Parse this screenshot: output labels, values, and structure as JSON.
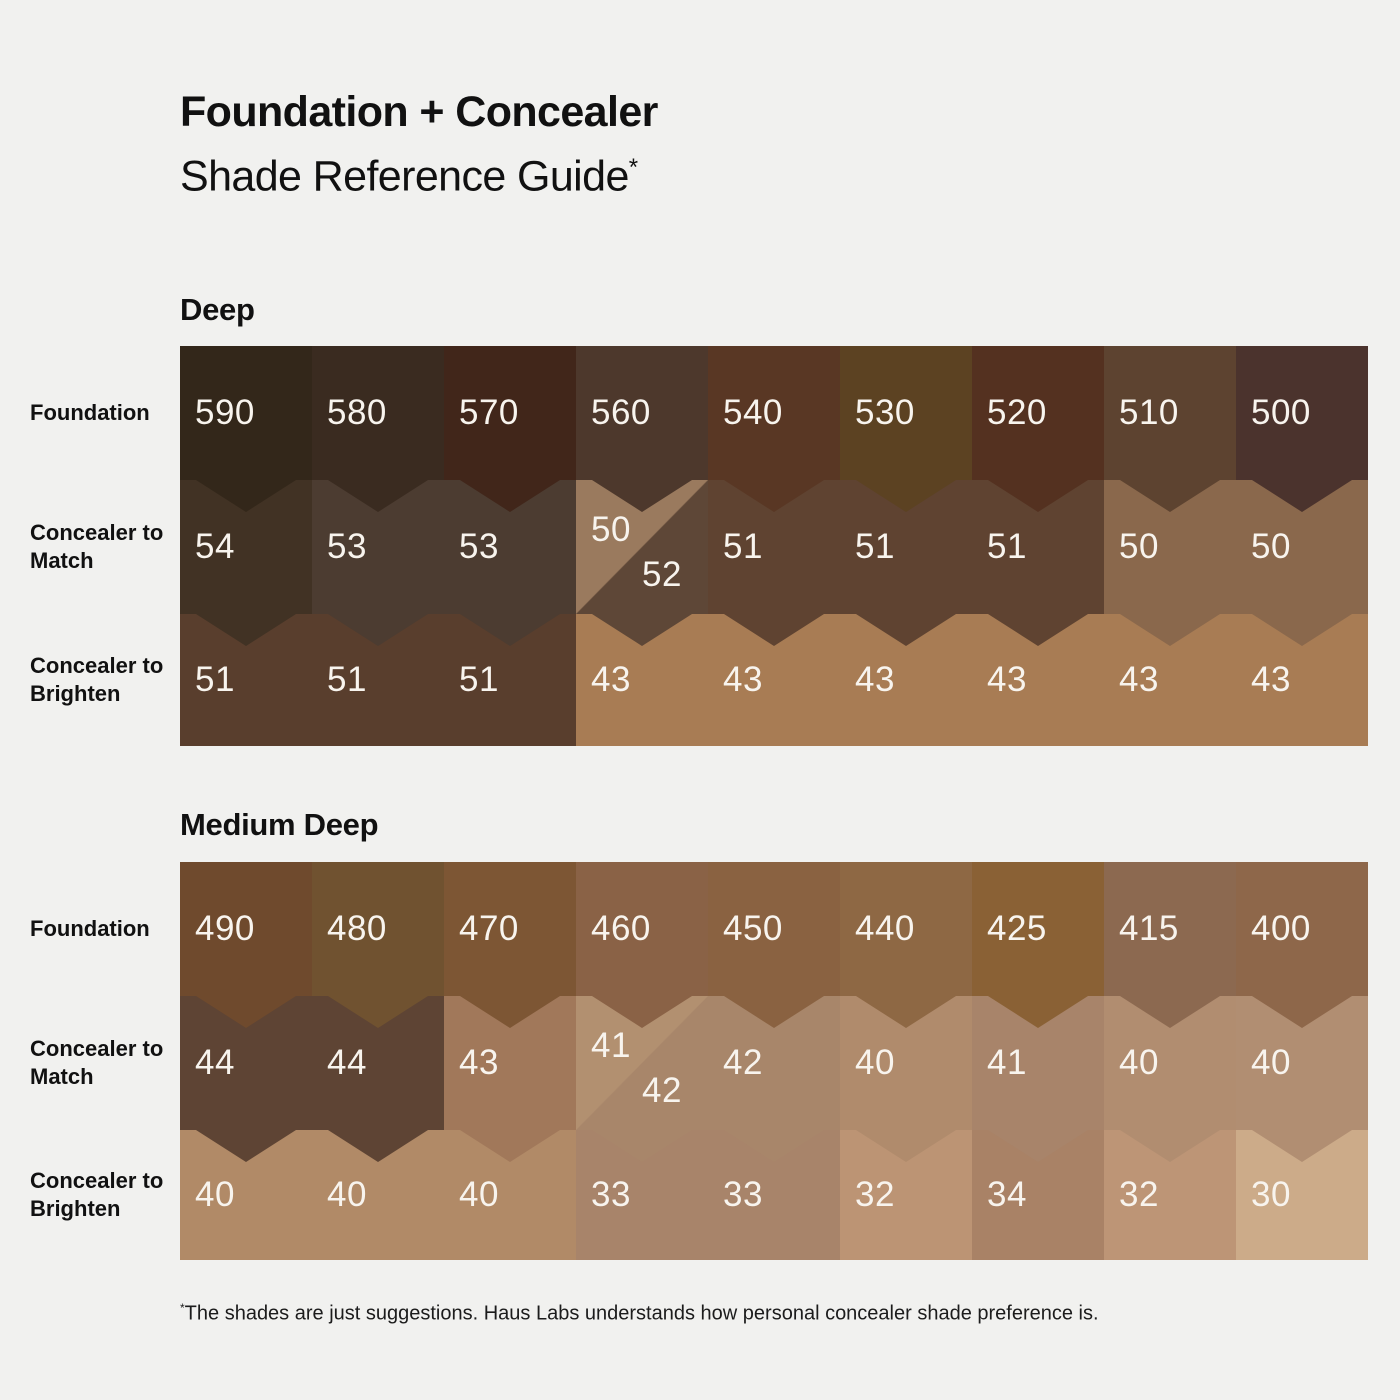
{
  "title": {
    "line1": "Foundation + Concealer",
    "line2": "Shade Reference Guide",
    "marker": "*"
  },
  "row_labels": [
    "Foundation",
    "Concealer to Match",
    "Concealer to Brighten"
  ],
  "footnote": {
    "marker": "*",
    "text": "The shades are just suggestions. Haus Labs understands how personal concealer shade preference is."
  },
  "colors": {
    "background": "#f1f1ef",
    "heading_text": "#111111",
    "swatch_number_text": "#f8f4ee"
  },
  "sections": [
    {
      "heading": "Deep",
      "rows": [
        {
          "key": "foundation",
          "label": "Foundation",
          "cells": [
            {
              "label": "590",
              "color": "#33271a"
            },
            {
              "label": "580",
              "color": "#3a2b20"
            },
            {
              "label": "570",
              "color": "#41261a"
            },
            {
              "label": "560",
              "color": "#4d382c"
            },
            {
              "label": "540",
              "color": "#593724"
            },
            {
              "label": "530",
              "color": "#5c4222"
            },
            {
              "label": "520",
              "color": "#543120"
            },
            {
              "label": "510",
              "color": "#5d4330"
            },
            {
              "label": "500",
              "color": "#4b332d"
            }
          ]
        },
        {
          "key": "concealer-to-match",
          "label": "Concealer to Match",
          "cells": [
            {
              "label": "54",
              "color": "#413224"
            },
            {
              "label": "53",
              "color": "#4c3c31"
            },
            {
              "label": "53",
              "color": "#4c3c31"
            },
            {
              "labels": [
                "50",
                "52"
              ],
              "colors": [
                "#9a7a5e",
                "#5e4737"
              ]
            },
            {
              "label": "51",
              "color": "#5f4331"
            },
            {
              "label": "51",
              "color": "#5f4331"
            },
            {
              "label": "51",
              "color": "#5f4331"
            },
            {
              "label": "50",
              "color": "#8a684c"
            },
            {
              "label": "50",
              "color": "#8a684c"
            }
          ]
        },
        {
          "key": "concealer-to-brighten",
          "label": "Concealer to Brighten",
          "cells": [
            {
              "label": "51",
              "color": "#593e2d"
            },
            {
              "label": "51",
              "color": "#593e2d"
            },
            {
              "label": "51",
              "color": "#593e2d"
            },
            {
              "label": "43",
              "color": "#a87c54"
            },
            {
              "label": "43",
              "color": "#a87c54"
            },
            {
              "label": "43",
              "color": "#a87c54"
            },
            {
              "label": "43",
              "color": "#a87c54"
            },
            {
              "label": "43",
              "color": "#a87c54"
            },
            {
              "label": "43",
              "color": "#a87c54"
            }
          ]
        }
      ]
    },
    {
      "heading": "Medium Deep",
      "rows": [
        {
          "key": "foundation",
          "label": "Foundation",
          "cells": [
            {
              "label": "490",
              "color": "#6f4a2d"
            },
            {
              "label": "480",
              "color": "#705230"
            },
            {
              "label": "470",
              "color": "#7d5634"
            },
            {
              "label": "460",
              "color": "#8a6246"
            },
            {
              "label": "450",
              "color": "#8a6241"
            },
            {
              "label": "440",
              "color": "#8e6844"
            },
            {
              "label": "425",
              "color": "#8a6135"
            },
            {
              "label": "415",
              "color": "#8c6950"
            },
            {
              "label": "400",
              "color": "#8e674a"
            }
          ]
        },
        {
          "key": "concealer-to-match",
          "label": "Concealer to Match",
          "cells": [
            {
              "label": "44",
              "color": "#5e4434"
            },
            {
              "label": "44",
              "color": "#5e4434"
            },
            {
              "label": "43",
              "color": "#a1785a"
            },
            {
              "labels": [
                "41",
                "42"
              ],
              "colors": [
                "#b29070",
                "#a8866a"
              ]
            },
            {
              "label": "42",
              "color": "#a8866a"
            },
            {
              "label": "40",
              "color": "#b08b6c"
            },
            {
              "label": "41",
              "color": "#a8846a"
            },
            {
              "label": "40",
              "color": "#b18d70"
            },
            {
              "label": "40",
              "color": "#b18e72"
            }
          ]
        },
        {
          "key": "concealer-to-brighten",
          "label": "Concealer to Brighten",
          "cells": [
            {
              "label": "40",
              "color": "#b18a67"
            },
            {
              "label": "40",
              "color": "#b18a67"
            },
            {
              "label": "40",
              "color": "#b18a67"
            },
            {
              "label": "33",
              "color": "#a8846a"
            },
            {
              "label": "33",
              "color": "#a8846a"
            },
            {
              "label": "32",
              "color": "#bc9474"
            },
            {
              "label": "34",
              "color": "#a98266"
            },
            {
              "label": "32",
              "color": "#bd9576"
            },
            {
              "label": "30",
              "color": "#ccab89"
            }
          ]
        }
      ]
    }
  ],
  "chart_data": {
    "type": "table",
    "title": "Foundation + Concealer Shade Reference Guide",
    "row_headers": [
      "Foundation",
      "Concealer to Match",
      "Concealer to Brighten"
    ],
    "sections": [
      {
        "name": "Deep",
        "foundation": [
          590,
          580,
          570,
          560,
          540,
          530,
          520,
          510,
          500
        ],
        "concealer_to_match": [
          "54",
          "53",
          "53",
          "50/52",
          "51",
          "51",
          "51",
          "50",
          "50"
        ],
        "concealer_to_brighten": [
          51,
          51,
          51,
          43,
          43,
          43,
          43,
          43,
          43
        ]
      },
      {
        "name": "Medium Deep",
        "foundation": [
          490,
          480,
          470,
          460,
          450,
          440,
          425,
          415,
          400
        ],
        "concealer_to_match": [
          "44",
          "44",
          "43",
          "41/42",
          "42",
          "40",
          "41",
          "40",
          "40"
        ],
        "concealer_to_brighten": [
          40,
          40,
          40,
          33,
          33,
          32,
          34,
          32,
          30
        ]
      }
    ]
  }
}
